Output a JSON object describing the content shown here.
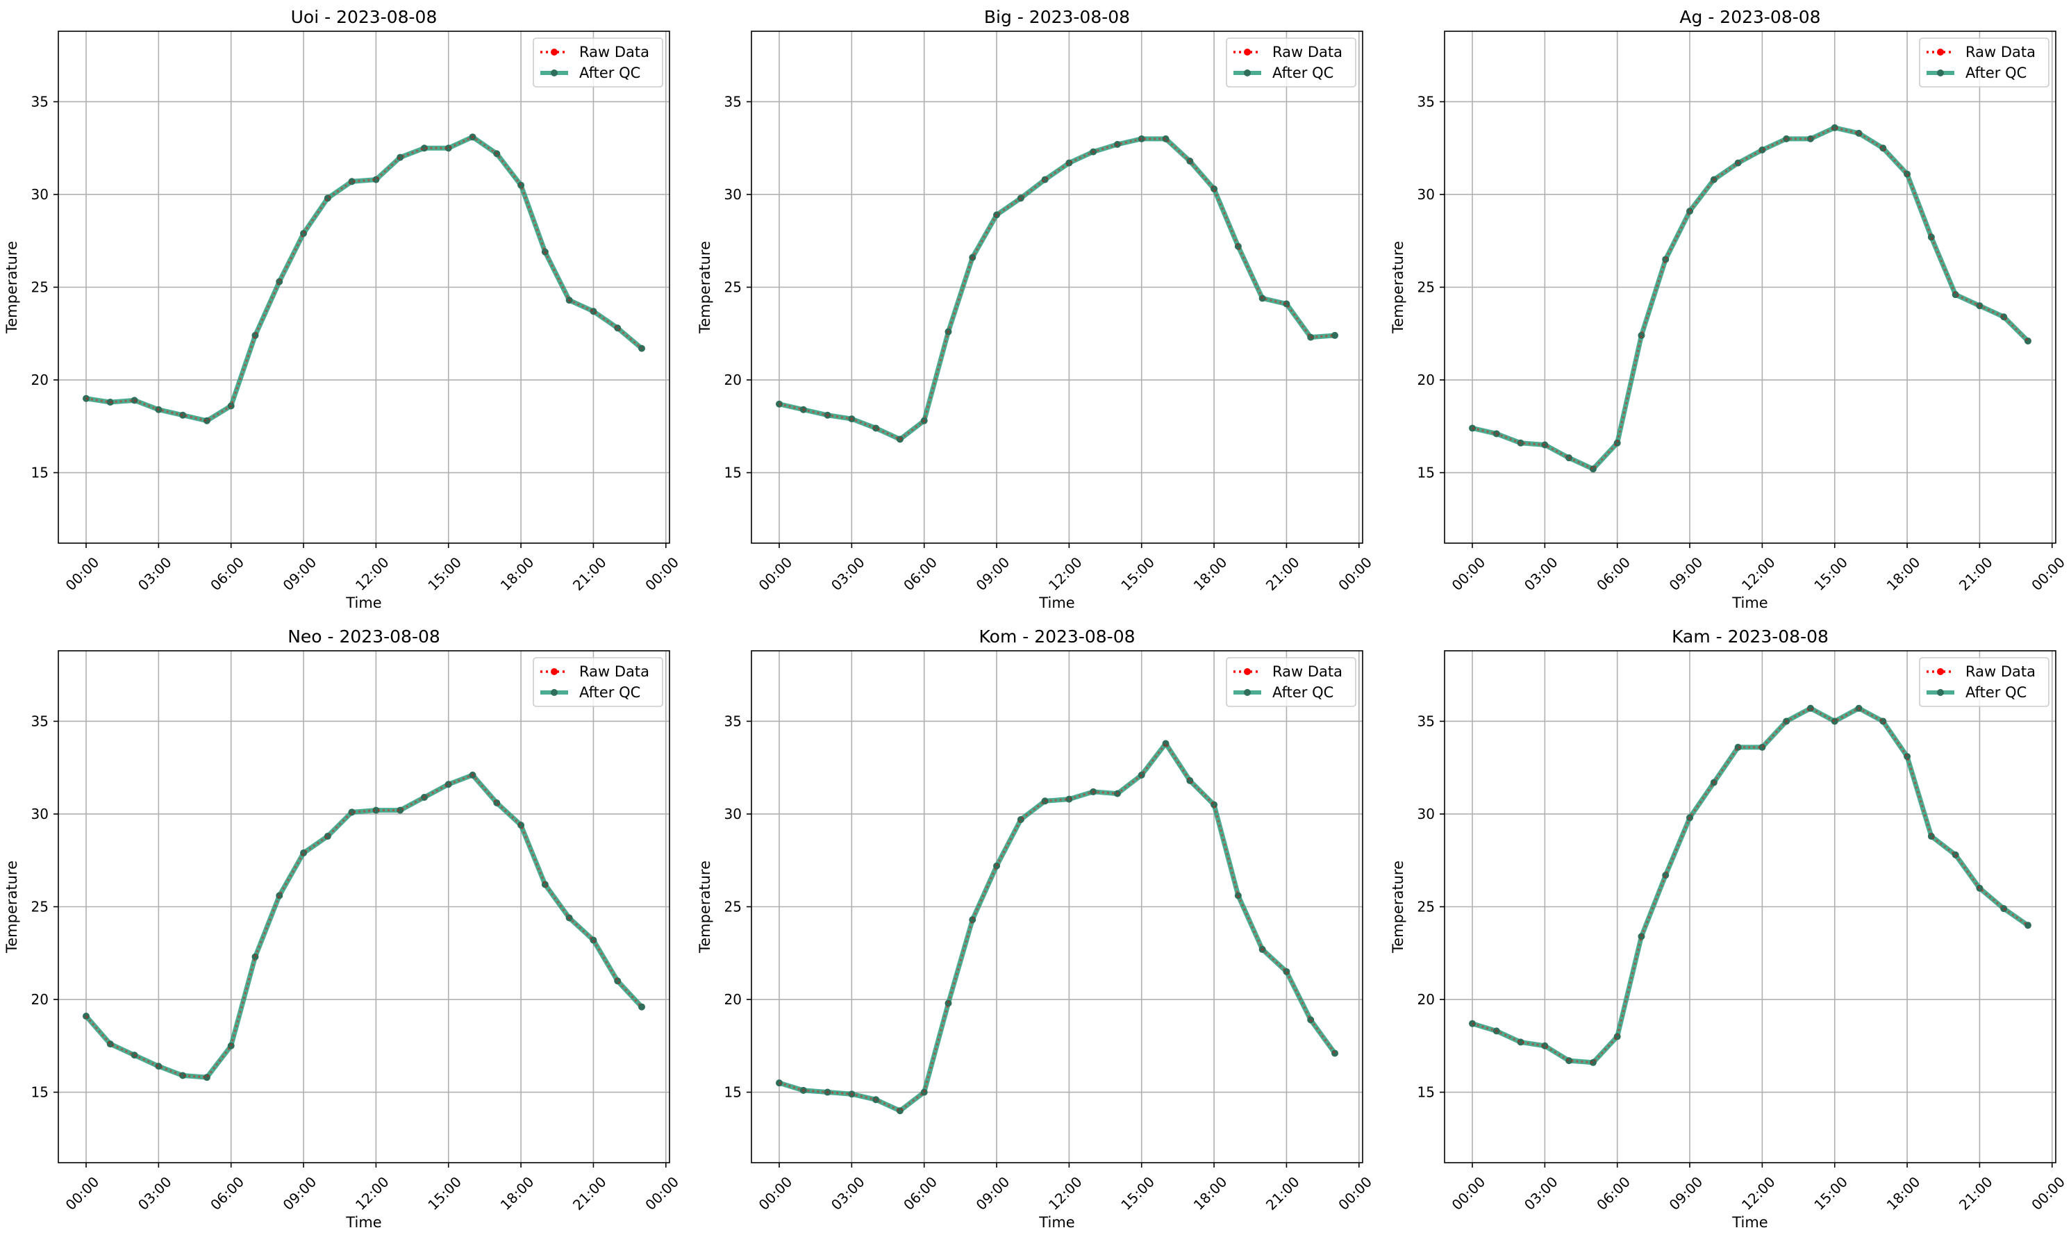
{
  "figure": {
    "colors": {
      "raw": "#ff0000",
      "qc": "#2a9d7c",
      "qc_marker": "#2e6e5a",
      "grid": "#b0b0b0"
    }
  },
  "chart_data": [
    {
      "type": "line",
      "title": "Uoi - 2023-08-08",
      "xlabel": "Time",
      "ylabel": "Temperature",
      "xlim": [
        -1.15,
        24.15
      ],
      "ylim": [
        11.2,
        38.8
      ],
      "yticks": [
        15,
        20,
        25,
        30,
        35
      ],
      "xticks": [
        0,
        3,
        6,
        9,
        12,
        15,
        18,
        21,
        24
      ],
      "xtick_labels": [
        "00:00",
        "03:00",
        "06:00",
        "09:00",
        "12:00",
        "15:00",
        "18:00",
        "21:00",
        "00:00"
      ],
      "grid": true,
      "legend": {
        "placement": "upper right",
        "entries": [
          "Raw Data",
          "After QC"
        ]
      },
      "x": [
        0,
        1,
        2,
        3,
        4,
        5,
        6,
        7,
        8,
        9,
        10,
        11,
        12,
        13,
        14,
        15,
        16,
        17,
        18,
        19,
        20,
        21,
        22,
        23
      ],
      "series": [
        {
          "name": "Raw Data",
          "style": "dotted-red",
          "values": [
            19.0,
            18.8,
            18.9,
            18.4,
            18.1,
            17.8,
            18.6,
            22.4,
            25.3,
            27.9,
            29.8,
            30.7,
            30.8,
            32.0,
            32.5,
            32.5,
            33.1,
            32.2,
            30.5,
            26.9,
            24.3,
            23.7,
            22.8,
            21.7
          ]
        },
        {
          "name": "After QC",
          "style": "solid-green",
          "values": [
            19.0,
            18.8,
            18.9,
            18.4,
            18.1,
            17.8,
            18.6,
            22.4,
            25.3,
            27.9,
            29.8,
            30.7,
            30.8,
            32.0,
            32.5,
            32.5,
            33.1,
            32.2,
            30.5,
            26.9,
            24.3,
            23.7,
            22.8,
            21.7
          ]
        }
      ]
    },
    {
      "type": "line",
      "title": "Big - 2023-08-08",
      "xlabel": "Time",
      "ylabel": "Temperature",
      "xlim": [
        -1.15,
        24.15
      ],
      "ylim": [
        11.2,
        38.8
      ],
      "yticks": [
        15,
        20,
        25,
        30,
        35
      ],
      "xticks": [
        0,
        3,
        6,
        9,
        12,
        15,
        18,
        21,
        24
      ],
      "xtick_labels": [
        "00:00",
        "03:00",
        "06:00",
        "09:00",
        "12:00",
        "15:00",
        "18:00",
        "21:00",
        "00:00"
      ],
      "grid": true,
      "legend": {
        "placement": "upper right",
        "entries": [
          "Raw Data",
          "After QC"
        ]
      },
      "x": [
        0,
        1,
        2,
        3,
        4,
        5,
        6,
        7,
        8,
        9,
        10,
        11,
        12,
        13,
        14,
        15,
        16,
        17,
        18,
        19,
        20,
        21,
        22,
        23
      ],
      "series": [
        {
          "name": "Raw Data",
          "style": "dotted-red",
          "values": [
            18.7,
            18.4,
            18.1,
            17.9,
            17.4,
            16.8,
            17.8,
            22.6,
            26.6,
            28.9,
            29.8,
            30.8,
            31.7,
            32.3,
            32.7,
            33.0,
            33.0,
            31.8,
            30.3,
            27.2,
            24.4,
            24.1,
            22.3,
            22.4
          ]
        },
        {
          "name": "After QC",
          "style": "solid-green",
          "values": [
            18.7,
            18.4,
            18.1,
            17.9,
            17.4,
            16.8,
            17.8,
            22.6,
            26.6,
            28.9,
            29.8,
            30.8,
            31.7,
            32.3,
            32.7,
            33.0,
            33.0,
            31.8,
            30.3,
            27.2,
            24.4,
            24.1,
            22.3,
            22.4
          ]
        }
      ]
    },
    {
      "type": "line",
      "title": "Ag - 2023-08-08",
      "xlabel": "Time",
      "ylabel": "Temperature",
      "xlim": [
        -1.15,
        24.15
      ],
      "ylim": [
        11.2,
        38.8
      ],
      "yticks": [
        15,
        20,
        25,
        30,
        35
      ],
      "xticks": [
        0,
        3,
        6,
        9,
        12,
        15,
        18,
        21,
        24
      ],
      "xtick_labels": [
        "00:00",
        "03:00",
        "06:00",
        "09:00",
        "12:00",
        "15:00",
        "18:00",
        "21:00",
        "00:00"
      ],
      "grid": true,
      "legend": {
        "placement": "upper right",
        "entries": [
          "Raw Data",
          "After QC"
        ]
      },
      "x": [
        0,
        1,
        2,
        3,
        4,
        5,
        6,
        7,
        8,
        9,
        10,
        11,
        12,
        13,
        14,
        15,
        16,
        17,
        18,
        19,
        20,
        21,
        22,
        23
      ],
      "series": [
        {
          "name": "Raw Data",
          "style": "dotted-red",
          "values": [
            17.4,
            17.1,
            16.6,
            16.5,
            15.8,
            15.2,
            16.6,
            22.4,
            26.5,
            29.1,
            30.8,
            31.7,
            32.4,
            33.0,
            33.0,
            33.6,
            33.3,
            32.5,
            31.1,
            27.7,
            24.6,
            24.0,
            23.4,
            22.1
          ]
        },
        {
          "name": "After QC",
          "style": "solid-green",
          "values": [
            17.4,
            17.1,
            16.6,
            16.5,
            15.8,
            15.2,
            16.6,
            22.4,
            26.5,
            29.1,
            30.8,
            31.7,
            32.4,
            33.0,
            33.0,
            33.6,
            33.3,
            32.5,
            31.1,
            27.7,
            24.6,
            24.0,
            23.4,
            22.1
          ]
        }
      ]
    },
    {
      "type": "line",
      "title": "Neo - 2023-08-08",
      "xlabel": "Time",
      "ylabel": "Temperature",
      "xlim": [
        -1.15,
        24.15
      ],
      "ylim": [
        11.2,
        38.8
      ],
      "yticks": [
        15,
        20,
        25,
        30,
        35
      ],
      "xticks": [
        0,
        3,
        6,
        9,
        12,
        15,
        18,
        21,
        24
      ],
      "xtick_labels": [
        "00:00",
        "03:00",
        "06:00",
        "09:00",
        "12:00",
        "15:00",
        "18:00",
        "21:00",
        "00:00"
      ],
      "grid": true,
      "legend": {
        "placement": "upper right",
        "entries": [
          "Raw Data",
          "After QC"
        ]
      },
      "x": [
        0,
        1,
        2,
        3,
        4,
        5,
        6,
        7,
        8,
        9,
        10,
        11,
        12,
        13,
        14,
        15,
        16,
        17,
        18,
        19,
        20,
        21,
        22,
        23
      ],
      "series": [
        {
          "name": "Raw Data",
          "style": "dotted-red",
          "values": [
            19.1,
            17.6,
            17.0,
            16.4,
            15.9,
            15.8,
            17.5,
            22.3,
            25.6,
            27.9,
            28.8,
            30.1,
            30.2,
            30.2,
            30.9,
            31.6,
            32.1,
            30.6,
            29.4,
            26.2,
            24.4,
            23.2,
            21.0,
            19.6
          ]
        },
        {
          "name": "After QC",
          "style": "solid-green",
          "values": [
            19.1,
            17.6,
            17.0,
            16.4,
            15.9,
            15.8,
            17.5,
            22.3,
            25.6,
            27.9,
            28.8,
            30.1,
            30.2,
            30.2,
            30.9,
            31.6,
            32.1,
            30.6,
            29.4,
            26.2,
            24.4,
            23.2,
            21.0,
            19.6
          ]
        }
      ]
    },
    {
      "type": "line",
      "title": "Kom - 2023-08-08",
      "xlabel": "Time",
      "ylabel": "Temperature",
      "xlim": [
        -1.15,
        24.15
      ],
      "ylim": [
        11.2,
        38.8
      ],
      "yticks": [
        15,
        20,
        25,
        30,
        35
      ],
      "xticks": [
        0,
        3,
        6,
        9,
        12,
        15,
        18,
        21,
        24
      ],
      "xtick_labels": [
        "00:00",
        "03:00",
        "06:00",
        "09:00",
        "12:00",
        "15:00",
        "18:00",
        "21:00",
        "00:00"
      ],
      "grid": true,
      "legend": {
        "placement": "upper right",
        "entries": [
          "Raw Data",
          "After QC"
        ]
      },
      "x": [
        0,
        1,
        2,
        3,
        4,
        5,
        6,
        7,
        8,
        9,
        10,
        11,
        12,
        13,
        14,
        15,
        16,
        17,
        18,
        19,
        20,
        21,
        22,
        23
      ],
      "series": [
        {
          "name": "Raw Data",
          "style": "dotted-red",
          "values": [
            15.5,
            15.1,
            15.0,
            14.9,
            14.6,
            14.0,
            15.0,
            19.8,
            24.3,
            27.2,
            29.7,
            30.7,
            30.8,
            31.2,
            31.1,
            32.1,
            33.8,
            31.8,
            30.5,
            25.6,
            22.7,
            21.5,
            18.9,
            17.1
          ]
        },
        {
          "name": "After QC",
          "style": "solid-green",
          "values": [
            15.5,
            15.1,
            15.0,
            14.9,
            14.6,
            14.0,
            15.0,
            19.8,
            24.3,
            27.2,
            29.7,
            30.7,
            30.8,
            31.2,
            31.1,
            32.1,
            33.8,
            31.8,
            30.5,
            25.6,
            22.7,
            21.5,
            18.9,
            17.1
          ]
        }
      ]
    },
    {
      "type": "line",
      "title": "Kam - 2023-08-08",
      "xlabel": "Time",
      "ylabel": "Temperature",
      "xlim": [
        -1.15,
        24.15
      ],
      "ylim": [
        11.2,
        38.8
      ],
      "yticks": [
        15,
        20,
        25,
        30,
        35
      ],
      "xticks": [
        0,
        3,
        6,
        9,
        12,
        15,
        18,
        21,
        24
      ],
      "xtick_labels": [
        "00:00",
        "03:00",
        "06:00",
        "09:00",
        "12:00",
        "15:00",
        "18:00",
        "21:00",
        "00:00"
      ],
      "grid": true,
      "legend": {
        "placement": "upper right",
        "entries": [
          "Raw Data",
          "After QC"
        ]
      },
      "x": [
        0,
        1,
        2,
        3,
        4,
        5,
        6,
        7,
        8,
        9,
        10,
        11,
        12,
        13,
        14,
        15,
        16,
        17,
        18,
        19,
        20,
        21,
        22,
        23
      ],
      "series": [
        {
          "name": "Raw Data",
          "style": "dotted-red",
          "values": [
            18.7,
            18.3,
            17.7,
            17.5,
            16.7,
            16.6,
            18.0,
            23.4,
            26.7,
            29.8,
            31.7,
            33.6,
            33.6,
            35.0,
            35.7,
            35.0,
            35.7,
            35.0,
            33.1,
            28.8,
            27.8,
            26.0,
            24.9,
            24.0
          ]
        },
        {
          "name": "After QC",
          "style": "solid-green",
          "values": [
            18.7,
            18.3,
            17.7,
            17.5,
            16.7,
            16.6,
            18.0,
            23.4,
            26.7,
            29.8,
            31.7,
            33.6,
            33.6,
            35.0,
            35.7,
            35.0,
            35.7,
            35.0,
            33.1,
            28.8,
            27.8,
            26.0,
            24.9,
            24.0
          ]
        }
      ]
    }
  ]
}
